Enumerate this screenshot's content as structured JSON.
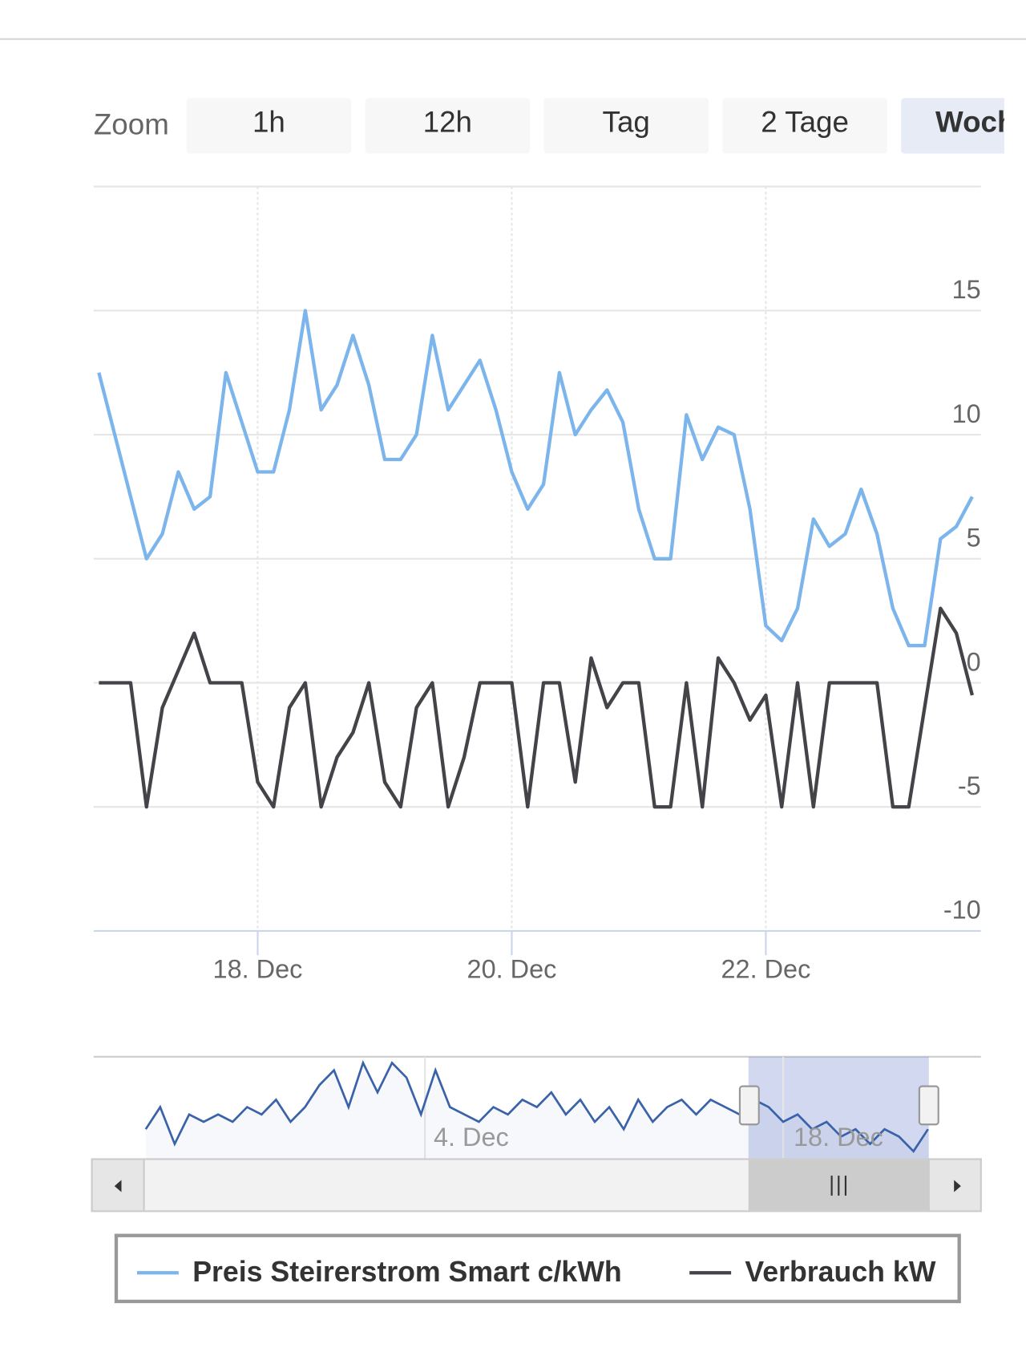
{
  "chart_data": {
    "type": "line",
    "zoom": {
      "label": "Zoom",
      "buttons": [
        "1h",
        "12h",
        "Tag",
        "2 Tage",
        "Woche"
      ],
      "selected": 4
    },
    "categories": [
      null,
      null,
      null,
      null,
      null,
      null,
      null,
      null,
      null,
      null,
      "18. Dec",
      null,
      null,
      null,
      null,
      null,
      null,
      null,
      null,
      null,
      null,
      null,
      null,
      null,
      null,
      null,
      "20. Dec",
      null,
      null,
      null,
      null,
      null,
      null,
      null,
      null,
      null,
      null,
      null,
      null,
      null,
      null,
      null,
      "22. Dec",
      null,
      null,
      null,
      null,
      null,
      null,
      null,
      null,
      null,
      null,
      null,
      null,
      null
    ],
    "series": [
      {
        "name": "Preis Steirerstrom Smart c/kWh",
        "color": "#7cb5ec",
        "values": [
          12.5,
          10,
          7.5,
          5,
          6,
          8.5,
          7,
          7.5,
          12.5,
          10.5,
          8.5,
          8.5,
          11,
          15,
          11,
          12,
          14,
          12,
          9,
          9,
          10,
          14,
          11,
          12,
          13,
          11,
          8.5,
          7,
          8,
          12.5,
          10,
          11,
          11.8,
          10.5,
          7,
          5,
          5,
          10.8,
          9,
          10.3,
          10,
          7,
          2.3,
          1.7,
          3,
          6.6,
          5.5,
          6,
          7.8,
          6,
          3,
          1.5,
          1.5,
          5.8,
          6.3,
          7.5
        ]
      },
      {
        "name": "Verbrauch kW",
        "color": "#434348",
        "values": [
          0,
          0,
          0,
          -5,
          -1,
          0.5,
          2,
          0,
          0,
          0,
          -4,
          -5,
          -1,
          0,
          -5,
          -3,
          -2,
          0,
          -4,
          -5,
          -1,
          0,
          -5,
          -3,
          0,
          0,
          0,
          -5,
          0,
          0,
          -4,
          1,
          -1,
          0,
          0,
          -5,
          -5,
          0,
          -5,
          1,
          0,
          -1.5,
          -0.5,
          -5,
          0,
          -5,
          0,
          0,
          0,
          0,
          -5,
          -5,
          -1,
          3,
          2,
          -0.5
        ]
      }
    ],
    "ylim": [
      -10,
      20
    ],
    "yticks": [
      -10,
      -5,
      0,
      5,
      10,
      15
    ],
    "grid": true,
    "navigator": {
      "labels": [
        "4. Dec",
        "18. Dec"
      ],
      "values": [
        6,
        9,
        4,
        8,
        7,
        8,
        7,
        9,
        8,
        10,
        7,
        9,
        12,
        14,
        9,
        15,
        11,
        15,
        13,
        8,
        14,
        9,
        8,
        7,
        9,
        8,
        10,
        9,
        11,
        8,
        10,
        7,
        9,
        6,
        10,
        7,
        9,
        10,
        8,
        10,
        9,
        8,
        10,
        9,
        7,
        8,
        6,
        7,
        5,
        6,
        4,
        6,
        5,
        3,
        6
      ]
    },
    "legend": "bottom"
  }
}
